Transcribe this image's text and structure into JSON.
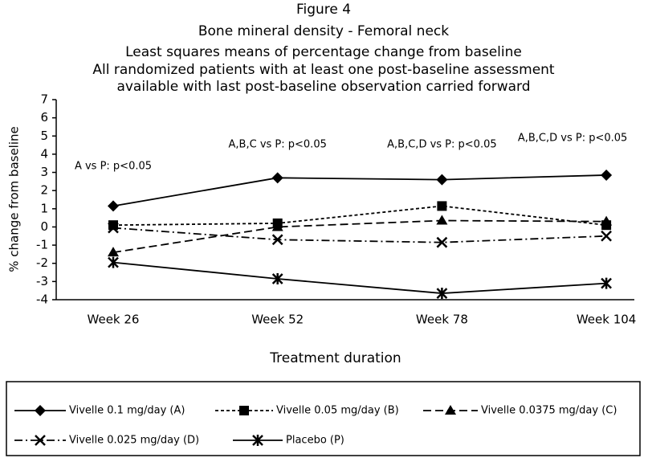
{
  "chart_data": {
    "type": "line",
    "title_lines": [
      "Figure 4",
      "Bone mineral density - Femoral neck",
      "Least squares means of percentage change from baseline",
      "All randomized patients with at least one post-baseline assessment",
      "available with last post-baseline observation carried forward"
    ],
    "xlabel": "Treatment duration",
    "ylabel": "% change from baseline",
    "categories": [
      "Week 26",
      "Week 52",
      "Week 78",
      "Week 104"
    ],
    "ylim": [
      -4,
      7
    ],
    "yticks": [
      7,
      6,
      5,
      4,
      3,
      2,
      1,
      0,
      -1,
      -2,
      -3,
      -4
    ],
    "annotations": [
      "A vs P: p<0.05",
      "A,B,C vs P: p<0.05",
      "A,B,C,D vs P: p<0.05",
      "A,B,C,D vs P: p<0.05"
    ],
    "series": [
      {
        "name": "Vivelle 0.1 mg/day (A)",
        "color": "#000000",
        "dash": "solid",
        "marker": "diamond",
        "values": [
          1.15,
          2.7,
          2.6,
          2.85
        ]
      },
      {
        "name": "Vivelle 0.05 mg/day (B)",
        "color": "#000000",
        "dash": "dotted",
        "marker": "square",
        "values": [
          0.1,
          0.2,
          1.15,
          0.1
        ]
      },
      {
        "name": "Vivelle 0.0375 mg/day (C)",
        "color": "#000000",
        "dash": "dashed",
        "marker": "triangle",
        "values": [
          -1.4,
          0.0,
          0.35,
          0.3
        ]
      },
      {
        "name": "Vivelle 0.025 mg/day (D)",
        "color": "#000000",
        "dash": "dashdot",
        "marker": "x",
        "values": [
          -0.05,
          -0.7,
          -0.85,
          -0.5
        ]
      },
      {
        "name": "Placebo (P)",
        "color": "#000000",
        "dash": "solid",
        "marker": "asterisk",
        "values": [
          -1.95,
          -2.85,
          -3.65,
          -3.1
        ]
      }
    ]
  }
}
